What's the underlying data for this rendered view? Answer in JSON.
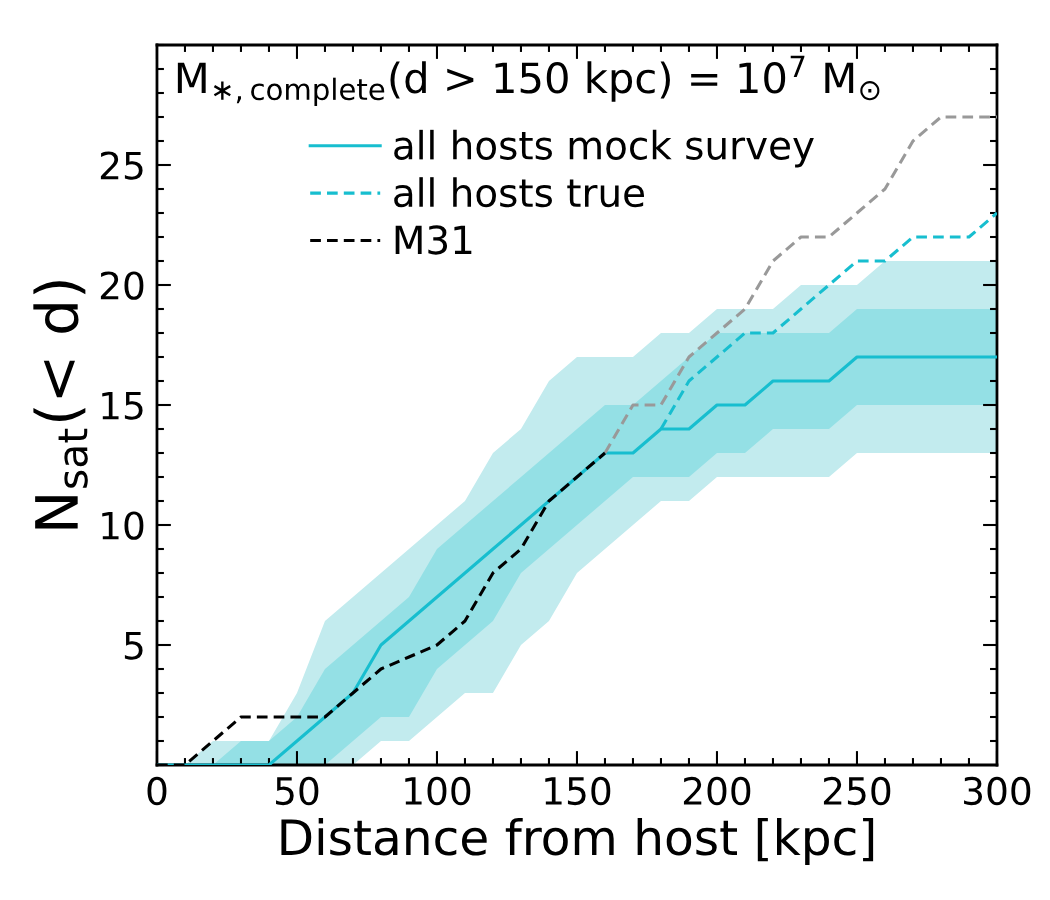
{
  "chart_data": {
    "type": "line",
    "xlabel": "Distance from host [kpc]",
    "ylabel": "N$_{sat}$(< d)",
    "legend_title": "M$_{∗,complete}$(d > 150 kpc) = 10$^{7}$ M$_{⊙}$",
    "x": [
      0,
      10,
      20,
      30,
      40,
      50,
      60,
      70,
      80,
      90,
      100,
      110,
      120,
      130,
      140,
      150,
      160,
      170,
      180,
      190,
      200,
      210,
      220,
      230,
      240,
      250,
      260,
      270,
      280,
      290,
      300
    ],
    "series": [
      {
        "color": "#c2ebee",
        "values": [
          null,
          null,
          null,
          null,
          null,
          null,
          null,
          null,
          null,
          null,
          null,
          null,
          null,
          null,
          null,
          null,
          null,
          null,
          null,
          null,
          null,
          null,
          null,
          null,
          null,
          null,
          null,
          null,
          null,
          null,
          null
        ],
        "lower": [
          0,
          0,
          0,
          0,
          0,
          0,
          0,
          0,
          1,
          1,
          2,
          3,
          3,
          5,
          6,
          8,
          9,
          10,
          11,
          11,
          12,
          12,
          12,
          12,
          12,
          13,
          13,
          13,
          13,
          13,
          13
        ],
        "upper": [
          0,
          0,
          1,
          1,
          1,
          3,
          6,
          7,
          8,
          9,
          10,
          11,
          13,
          14,
          16,
          17,
          17,
          17,
          18,
          18,
          19,
          19,
          19,
          20,
          20,
          20,
          21,
          21,
          21,
          21,
          21
        ]
      },
      {
        "color": "#94e0e5",
        "values": [
          null,
          null,
          null,
          null,
          null,
          null,
          null,
          null,
          null,
          null,
          null,
          null,
          null,
          null,
          null,
          null,
          null,
          null,
          null,
          null,
          null,
          null,
          null,
          null,
          null,
          null,
          null,
          null,
          null,
          null,
          null
        ],
        "lower": [
          0,
          0,
          0,
          0,
          0,
          0,
          0,
          1,
          2,
          2,
          4,
          5,
          6,
          8,
          9,
          10,
          11,
          12,
          12,
          12,
          13,
          13,
          14,
          14,
          14,
          15,
          15,
          15,
          15,
          15,
          15
        ],
        "upper": [
          0,
          0,
          0,
          1,
          1,
          2,
          4,
          5,
          6,
          7,
          9,
          10,
          11,
          12,
          13,
          14,
          15,
          15,
          16,
          17,
          18,
          18,
          18,
          18,
          18,
          19,
          19,
          19,
          19,
          19,
          19
        ]
      },
      {
        "name": "all hosts mock survey",
        "color": "#17becf",
        "line_style": "solid",
        "values": [
          0,
          0,
          0,
          0,
          0,
          1,
          2,
          3,
          5,
          6,
          7,
          8,
          9,
          10,
          11,
          12,
          13,
          13,
          14,
          14,
          15,
          15,
          16,
          16,
          16,
          17,
          17,
          17,
          17,
          17,
          17
        ]
      },
      {
        "name": "all hosts true",
        "color": "#17becf",
        "line_style": "dashed",
        "values": [
          null,
          null,
          null,
          null,
          null,
          null,
          null,
          null,
          null,
          null,
          null,
          null,
          null,
          null,
          null,
          null,
          null,
          null,
          14,
          16,
          17,
          18,
          18,
          19,
          20,
          21,
          21,
          22,
          22,
          22,
          23
        ]
      },
      {
        "color": "#999999",
        "line_style": "dashed",
        "values": [
          null,
          null,
          null,
          null,
          null,
          null,
          null,
          null,
          null,
          null,
          null,
          null,
          null,
          null,
          null,
          null,
          13,
          15,
          15,
          17,
          18,
          19,
          21,
          22,
          22,
          23,
          24,
          26,
          27,
          27,
          27
        ]
      },
      {
        "name": "M31",
        "color": "#000000",
        "line_style": "dashed",
        "values": [
          0,
          0,
          1,
          2,
          2,
          2,
          2,
          3,
          4,
          4.5,
          5,
          6,
          8,
          9,
          11,
          12,
          13,
          null,
          null,
          null,
          null,
          null,
          null,
          null,
          null,
          null,
          null,
          null,
          null,
          null,
          null
        ]
      }
    ],
    "xlim": [
      0,
      300
    ],
    "xticks": [
      0,
      50,
      100,
      150,
      200,
      250,
      300
    ],
    "ylim": [
      0,
      30
    ],
    "yticks": [
      5,
      10,
      15,
      20,
      25
    ],
    "grid": false,
    "legend": "top left",
    "marker": "none"
  }
}
